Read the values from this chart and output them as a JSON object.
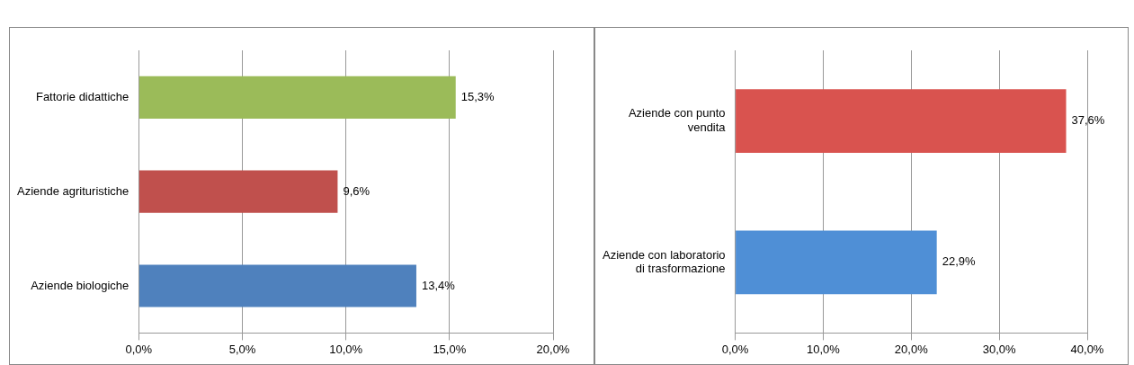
{
  "chart_data": [
    {
      "type": "bar",
      "orientation": "horizontal",
      "categories": [
        "Fattorie didattiche",
        "Aziende agrituristiche",
        "Aziende biologiche"
      ],
      "values": [
        15.3,
        9.6,
        13.4
      ],
      "colors": [
        "#9bbb59",
        "#c0504d",
        "#4f81bd"
      ],
      "value_labels": [
        "15,3%",
        "9,6%",
        "13,4%"
      ],
      "xlim": [
        0,
        20
      ],
      "xticks": [
        {
          "value": 0,
          "label": "0,0%"
        },
        {
          "value": 5,
          "label": "5,0%"
        },
        {
          "value": 10,
          "label": "10,0%"
        },
        {
          "value": 15,
          "label": "15,0%"
        },
        {
          "value": 20,
          "label": "20,0%"
        }
      ],
      "grid": "x",
      "legend": false
    },
    {
      "type": "bar",
      "orientation": "horizontal",
      "categories": [
        "Aziende con punto vendita",
        "Aziende con laboratorio di trasformazione"
      ],
      "values": [
        37.6,
        22.9
      ],
      "colors": [
        "#d9534f",
        "#4f8fd6"
      ],
      "value_labels": [
        "37,6%",
        "22,9%"
      ],
      "xlim": [
        0,
        40
      ],
      "xticks": [
        {
          "value": 0,
          "label": "0,0%"
        },
        {
          "value": 10,
          "label": "10,0%"
        },
        {
          "value": 20,
          "label": "20,0%"
        },
        {
          "value": 30,
          "label": "30,0%"
        },
        {
          "value": 40,
          "label": "40,0%"
        }
      ],
      "grid": "x",
      "legend": false
    }
  ]
}
